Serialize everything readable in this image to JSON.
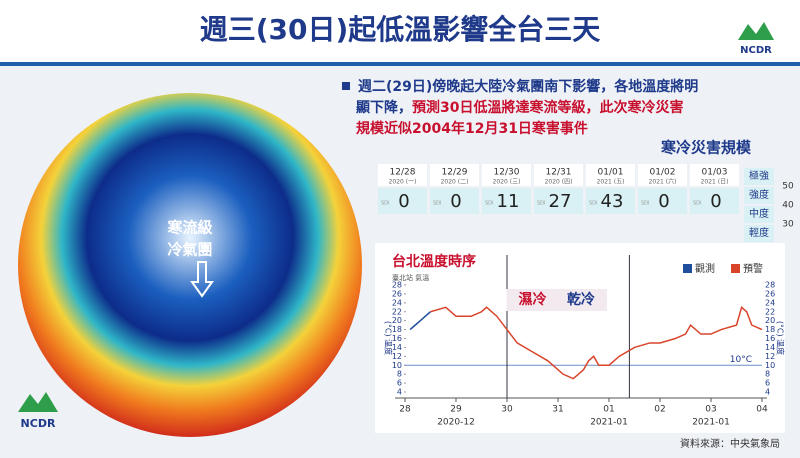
{
  "header": {
    "title": "週三(30日)起低溫影響全台三天",
    "logo": "NCDR"
  },
  "bullet": [
    [
      {
        "text": "週二(29日)傍晚起大陸冷氣團南下影響，各地溫度將明",
        "color": "#1f3a8a"
      }
    ],
    [
      {
        "text": "顯下降，",
        "color": "#1f3a8a"
      },
      {
        "text": "預測30日低溫將達寒流等級，此次寒冷災害",
        "color": "#c8102e"
      }
    ],
    [
      {
        "text": "規模近似2004年12月31日寒害事件",
        "color": "#c8102e"
      }
    ]
  ],
  "globe": {
    "label": [
      "寒流級",
      "冷氣團"
    ]
  },
  "scale_table": {
    "title": "寒冷災害規模",
    "index_label": "SDI",
    "dates": [
      "12/28",
      "12/29",
      "12/30",
      "12/31",
      "01/01",
      "01/02",
      "01/03"
    ],
    "weekdays": [
      "2020 (一)",
      "2020 (二)",
      "2020 (三)",
      "2020 (四)",
      "2021 (五)",
      "2021 (六)",
      "2021 (日)"
    ],
    "values": [
      0,
      0,
      11,
      27,
      43,
      0,
      0
    ],
    "levels": [
      {
        "name": "極強",
        "value": "50"
      },
      {
        "name": "強度",
        "value": "40"
      },
      {
        "name": "中度",
        "value": "30"
      },
      {
        "name": "輕度"
      }
    ]
  },
  "chart_data": {
    "type": "line",
    "title": "台北溫度時序",
    "subtitle": "臺北站 氣溫",
    "y_label": "(°C) 溫度",
    "xlim": [
      0,
      7
    ],
    "xticks": [
      {
        "value": 0,
        "label": "28"
      },
      {
        "value": 1,
        "label": "29"
      },
      {
        "value": 2,
        "label": "30"
      },
      {
        "value": 3,
        "label": "31"
      },
      {
        "value": 4,
        "label": "01"
      },
      {
        "value": 5,
        "label": "02"
      },
      {
        "value": 6,
        "label": "03"
      },
      {
        "value": 7,
        "label": "04"
      }
    ],
    "x_group_labels": [
      {
        "value": 1,
        "label": "2020-12"
      },
      {
        "value": 4,
        "label": "2021-01"
      },
      {
        "value": 6,
        "label": "2021-01"
      }
    ],
    "ylim": [
      4,
      28
    ],
    "yticks": [
      4,
      6,
      8,
      10,
      12,
      14,
      16,
      18,
      20,
      22,
      24,
      26,
      28
    ],
    "ref_line": {
      "value": 10,
      "label": "10°C"
    },
    "vlines": [
      2,
      4.4
    ],
    "annotations": [
      {
        "x": 2.5,
        "text": "濕冷",
        "color": "#c8102e"
      },
      {
        "x": 3.45,
        "text": "乾冷",
        "color": "#1f3a8a"
      }
    ],
    "series": [
      {
        "name": "觀測",
        "color": "#1f4e9c",
        "x": [
          0.1,
          0.2,
          0.3,
          0.4,
          0.5
        ],
        "values": [
          18,
          19,
          20,
          21,
          22
        ]
      },
      {
        "name": "預警",
        "color": "#d9452b",
        "x": [
          0.5,
          0.8,
          1.0,
          1.3,
          1.5,
          1.6,
          1.8,
          2.0,
          2.2,
          2.5,
          2.8,
          3.0,
          3.1,
          3.3,
          3.4,
          3.5,
          3.6,
          3.7,
          3.8,
          4.0,
          4.2,
          4.5,
          4.8,
          5.0,
          5.3,
          5.5,
          5.6,
          5.8,
          6.0,
          6.2,
          6.5,
          6.6,
          6.7,
          6.8,
          7.0
        ],
        "values": [
          22,
          23,
          21,
          21,
          22,
          23,
          21,
          18,
          15,
          13,
          11,
          9,
          8,
          7,
          8,
          9,
          11,
          12,
          10,
          10,
          12,
          14,
          15,
          15,
          16,
          17,
          19,
          17,
          17,
          18,
          19,
          23,
          22,
          19,
          18
        ]
      }
    ]
  },
  "footer": {
    "source": "資料來源：中央氣象局"
  }
}
